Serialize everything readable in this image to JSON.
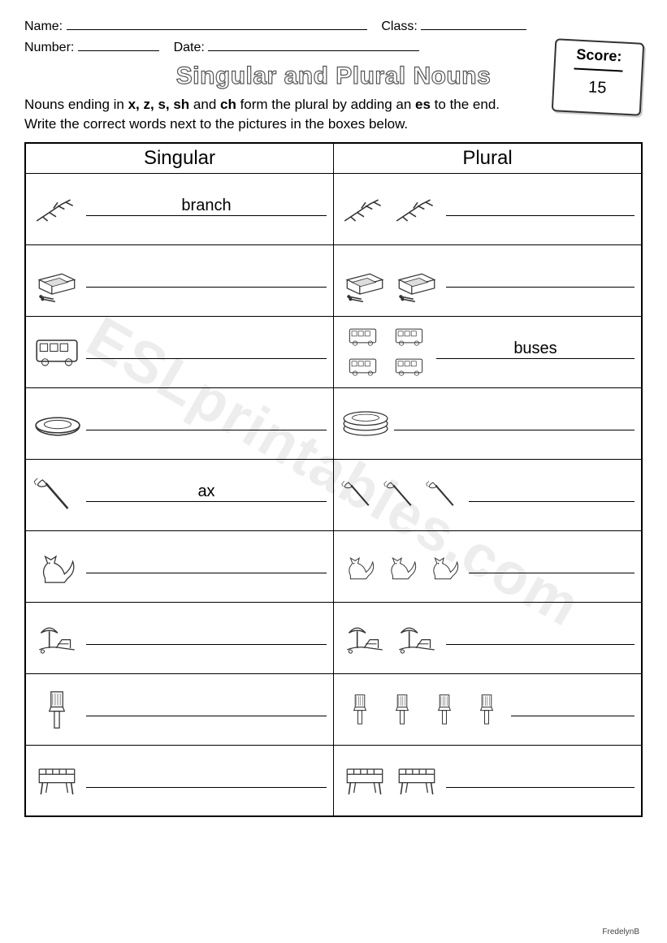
{
  "header": {
    "name_label": "Name:",
    "class_label": "Class:",
    "number_label": "Number:",
    "date_label": "Date:"
  },
  "title": "Singular and Plural Nouns",
  "instructions_part1": "Nouns ending in ",
  "instructions_bold1": "x, z, s, sh",
  "instructions_mid": " and ",
  "instructions_bold2": "ch",
  "instructions_part2": " form the plural by adding an ",
  "instructions_bold3": "es",
  "instructions_part3": " to the end.",
  "instructions_line2": "Write the correct words next to the pictures in the boxes below.",
  "score": {
    "label": "Score:",
    "total": "15"
  },
  "columns": {
    "singular": "Singular",
    "plural": "Plural"
  },
  "rows": [
    {
      "item": "branch",
      "singular_answer": "branch",
      "plural_answer": "",
      "plural_count": 2
    },
    {
      "item": "matchbox",
      "singular_answer": "",
      "plural_answer": "",
      "plural_count": 2
    },
    {
      "item": "bus",
      "singular_answer": "",
      "plural_answer": "buses",
      "plural_count": 4
    },
    {
      "item": "dish",
      "singular_answer": "",
      "plural_answer": "",
      "plural_count": 3
    },
    {
      "item": "ax",
      "singular_answer": "ax",
      "plural_answer": "",
      "plural_count": 3
    },
    {
      "item": "fox",
      "singular_answer": "",
      "plural_answer": "",
      "plural_count": 3
    },
    {
      "item": "beach",
      "singular_answer": "",
      "plural_answer": "",
      "plural_count": 2
    },
    {
      "item": "brush",
      "singular_answer": "",
      "plural_answer": "",
      "plural_count": 4
    },
    {
      "item": "bench",
      "singular_answer": "",
      "plural_answer": "",
      "plural_count": 2
    }
  ],
  "watermark": "ESLprintables.com",
  "credit": "FredelynB"
}
